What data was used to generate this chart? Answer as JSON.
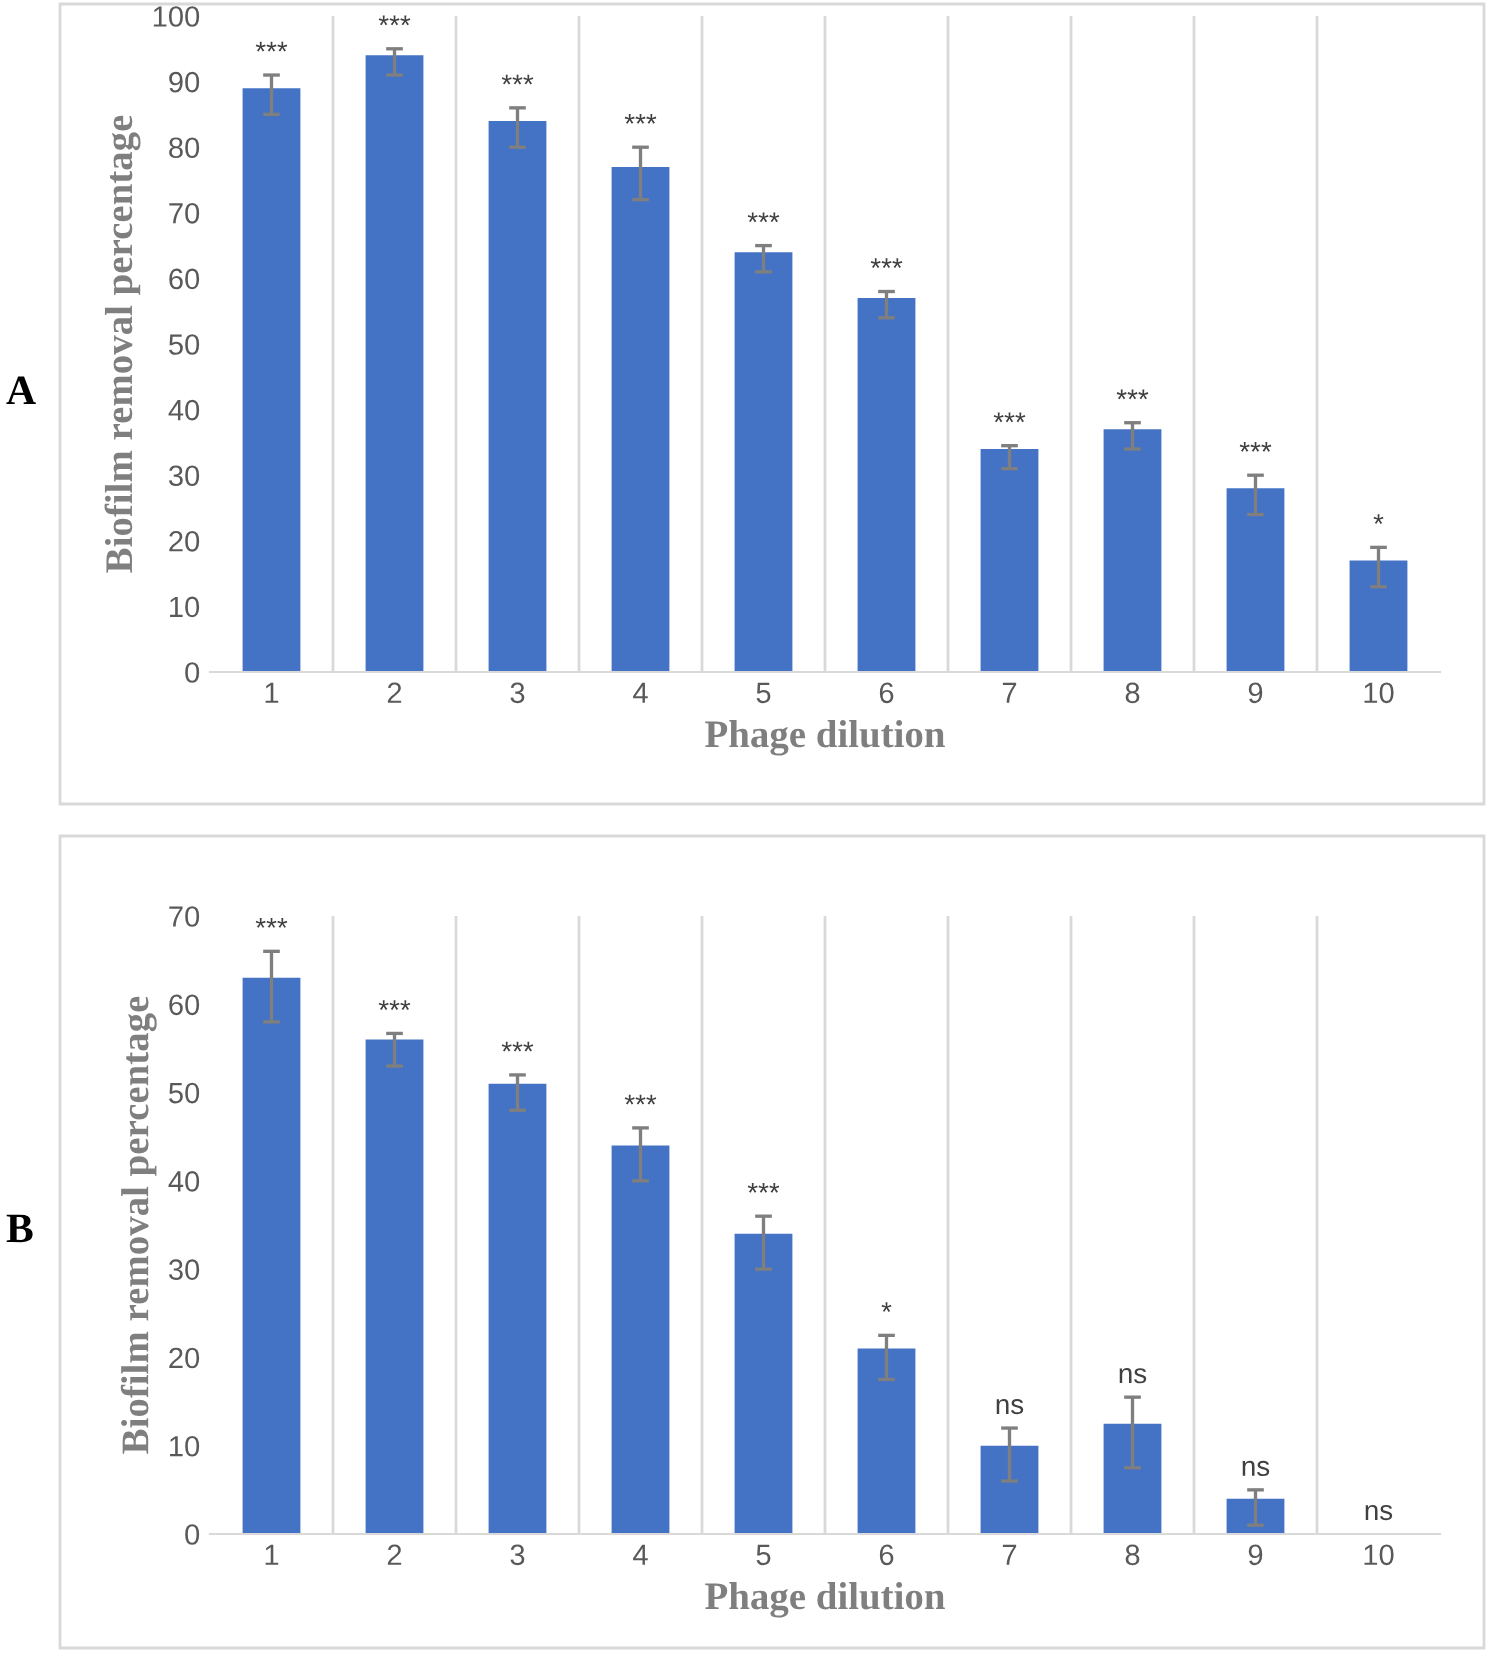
{
  "chart_data": [
    {
      "type": "bar",
      "xlabel": "Phage dilution",
      "ylabel": "Biofilm removal percentage",
      "categories": [
        "1",
        "2",
        "3",
        "4",
        "5",
        "6",
        "7",
        "8",
        "9",
        "10"
      ],
      "series": [
        {
          "color": "#4472c4",
          "values": [
            89,
            94,
            84,
            77,
            64,
            57,
            34,
            37,
            28,
            17
          ],
          "errors": [
            [
              85,
              91
            ],
            [
              91,
              95
            ],
            [
              80,
              86
            ],
            [
              72,
              80
            ],
            [
              61,
              65
            ],
            [
              54,
              58
            ],
            [
              31,
              34.5
            ],
            [
              34,
              38
            ],
            [
              24,
              30
            ],
            [
              13,
              19
            ]
          ]
        }
      ],
      "ylim": [
        0,
        100
      ],
      "yticks": [
        0,
        10,
        20,
        30,
        40,
        50,
        60,
        70,
        80,
        90,
        100
      ],
      "grid": "x",
      "legend": false,
      "annotations": [
        "A",
        {
          "text": "***",
          "x": "1",
          "y": 91
        },
        {
          "text": "***",
          "x": "2",
          "y": 95
        },
        {
          "text": "***",
          "x": "3",
          "y": 86
        },
        {
          "text": "***",
          "x": "4",
          "y": 80
        },
        {
          "text": "***",
          "x": "5",
          "y": 65
        },
        {
          "text": "***",
          "x": "6",
          "y": 58
        },
        {
          "text": "***",
          "x": "7",
          "y": 34.5
        },
        {
          "text": "***",
          "x": "8",
          "y": 38
        },
        {
          "text": "***",
          "x": "9",
          "y": 30
        },
        {
          "text": "*",
          "x": "10",
          "y": 19
        }
      ]
    },
    {
      "type": "bar",
      "xlabel": "Phage dilution",
      "ylabel": "Biofilm removal percentage",
      "categories": [
        "1",
        "2",
        "3",
        "4",
        "5",
        "6",
        "7",
        "8",
        "9",
        "10"
      ],
      "series": [
        {
          "color": "#4472c4",
          "values": [
            63,
            56,
            51,
            44,
            34,
            21,
            10,
            12.5,
            4,
            0
          ],
          "errors": [
            [
              58,
              66
            ],
            [
              53,
              56.7
            ],
            [
              48,
              52
            ],
            [
              40,
              46
            ],
            [
              30,
              36
            ],
            [
              17.5,
              22.5
            ],
            [
              6,
              12
            ],
            [
              7.5,
              15.5
            ],
            [
              1,
              5
            ],
            null
          ]
        }
      ],
      "ylim": [
        0,
        70
      ],
      "yticks": [
        0,
        10,
        20,
        30,
        40,
        50,
        60,
        70
      ],
      "grid": "x",
      "legend": false,
      "annotations": [
        "B",
        {
          "text": "***",
          "x": "1",
          "y": 66
        },
        {
          "text": "***",
          "x": "2",
          "y": 56.7
        },
        {
          "text": "***",
          "x": "3",
          "y": 52
        },
        {
          "text": "***",
          "x": "4",
          "y": 46
        },
        {
          "text": "***",
          "x": "5",
          "y": 36
        },
        {
          "text": "*",
          "x": "6",
          "y": 22.5
        },
        {
          "text": "ns",
          "x": "7",
          "y": 12
        },
        {
          "text": "ns",
          "x": "8",
          "y": 15.5
        },
        {
          "text": "ns",
          "x": "9",
          "y": 5
        },
        {
          "text": "ns",
          "x": "10",
          "y": 0
        }
      ]
    }
  ]
}
